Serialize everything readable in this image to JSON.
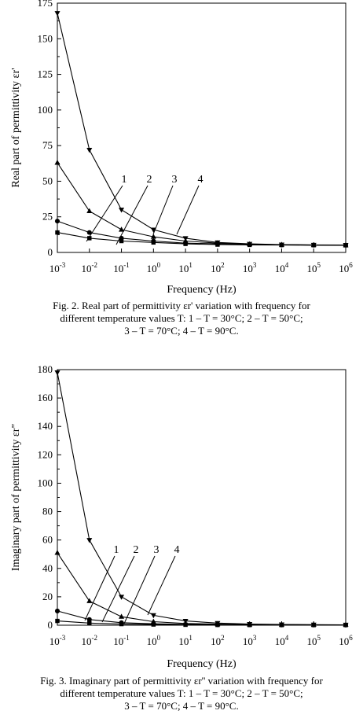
{
  "chart_data": [
    {
      "type": "line",
      "xlabel": "Frequency (Hz)",
      "ylabel": "Real part of permittivity εr'",
      "xscale": "log",
      "x": [
        0.001,
        0.01,
        0.1,
        1,
        10,
        100,
        1000,
        10000,
        100000,
        1000000
      ],
      "xticklabels": [
        "10^-3",
        "10^-2",
        "10^-1",
        "10^0",
        "10^1",
        "10^2",
        "10^3",
        "10^4",
        "10^5",
        "10^6"
      ],
      "ylim": [
        0,
        175
      ],
      "yticks": [
        0,
        25,
        50,
        75,
        100,
        125,
        150,
        175
      ],
      "yticklabels": [
        "0",
        "25",
        "50",
        "75",
        "100",
        "125",
        "150",
        "175"
      ],
      "series": [
        {
          "name": "1",
          "marker": "square",
          "values": [
            14,
            10,
            8,
            7,
            6,
            5.5,
            5.3,
            5.2,
            5.1,
            5
          ]
        },
        {
          "name": "2",
          "marker": "circle",
          "values": [
            22,
            14,
            10,
            8,
            6.5,
            6,
            5.5,
            5.3,
            5.2,
            5.1
          ]
        },
        {
          "name": "3",
          "marker": "triangle-up",
          "values": [
            63,
            29,
            16,
            11,
            8,
            6.5,
            5.8,
            5.4,
            5.2,
            5.1
          ]
        },
        {
          "name": "4",
          "marker": "triangle-down",
          "values": [
            168,
            72,
            30,
            16,
            10,
            7,
            6,
            5.5,
            5.3,
            5.2
          ]
        }
      ],
      "callouts": [
        "1",
        "2",
        "3",
        "4"
      ],
      "caption": {
        "line1": "Fig. 2.  Real part of permittivity εr' variation with frequency for",
        "line2": "different temperature values T: 1 – T = 30°C; 2 – T = 50°C;",
        "line3": "3 – T = 70°C; 4 – T = 90°C."
      }
    },
    {
      "type": "line",
      "xlabel": "Frequency (Hz)",
      "ylabel": "Imaginary part of permittivity εr\"",
      "xscale": "log",
      "x": [
        0.001,
        0.01,
        0.1,
        1,
        10,
        100,
        1000,
        10000,
        100000,
        1000000
      ],
      "xticklabels": [
        "10^-3",
        "10^-2",
        "10^-1",
        "10^0",
        "10^1",
        "10^2",
        "10^3",
        "10^4",
        "10^5",
        "10^6"
      ],
      "ylim": [
        0,
        180
      ],
      "yticks": [
        0,
        20,
        40,
        60,
        80,
        100,
        120,
        140,
        160,
        180
      ],
      "yticklabels": [
        "0",
        "20",
        "40",
        "60",
        "80",
        "100",
        "120",
        "140",
        "160",
        "180"
      ],
      "series": [
        {
          "name": "1",
          "marker": "square",
          "values": [
            3,
            1.5,
            0.8,
            0.5,
            0.3,
            0.2,
            0.15,
            0.1,
            0.1,
            0.1
          ]
        },
        {
          "name": "2",
          "marker": "circle",
          "values": [
            10,
            4,
            1.8,
            1,
            0.6,
            0.4,
            0.3,
            0.2,
            0.2,
            0.15
          ]
        },
        {
          "name": "3",
          "marker": "triangle-up",
          "values": [
            51,
            17,
            6,
            2.5,
            1.2,
            0.7,
            0.5,
            0.4,
            0.3,
            0.3
          ]
        },
        {
          "name": "4",
          "marker": "triangle-down",
          "values": [
            178,
            60,
            20,
            7,
            3,
            1.5,
            0.8,
            0.5,
            0.4,
            0.3
          ]
        }
      ],
      "callouts": [
        "1",
        "2",
        "3",
        "4"
      ],
      "caption": {
        "line1": "Fig. 3.  Imaginary part of permittivity εr'' variation with frequency for",
        "line2": "different temperature values T: 1 – T = 30°C; 2 – T = 50°C;",
        "line3": "3 – T = 70°C; 4 – T = 90°C."
      }
    }
  ]
}
